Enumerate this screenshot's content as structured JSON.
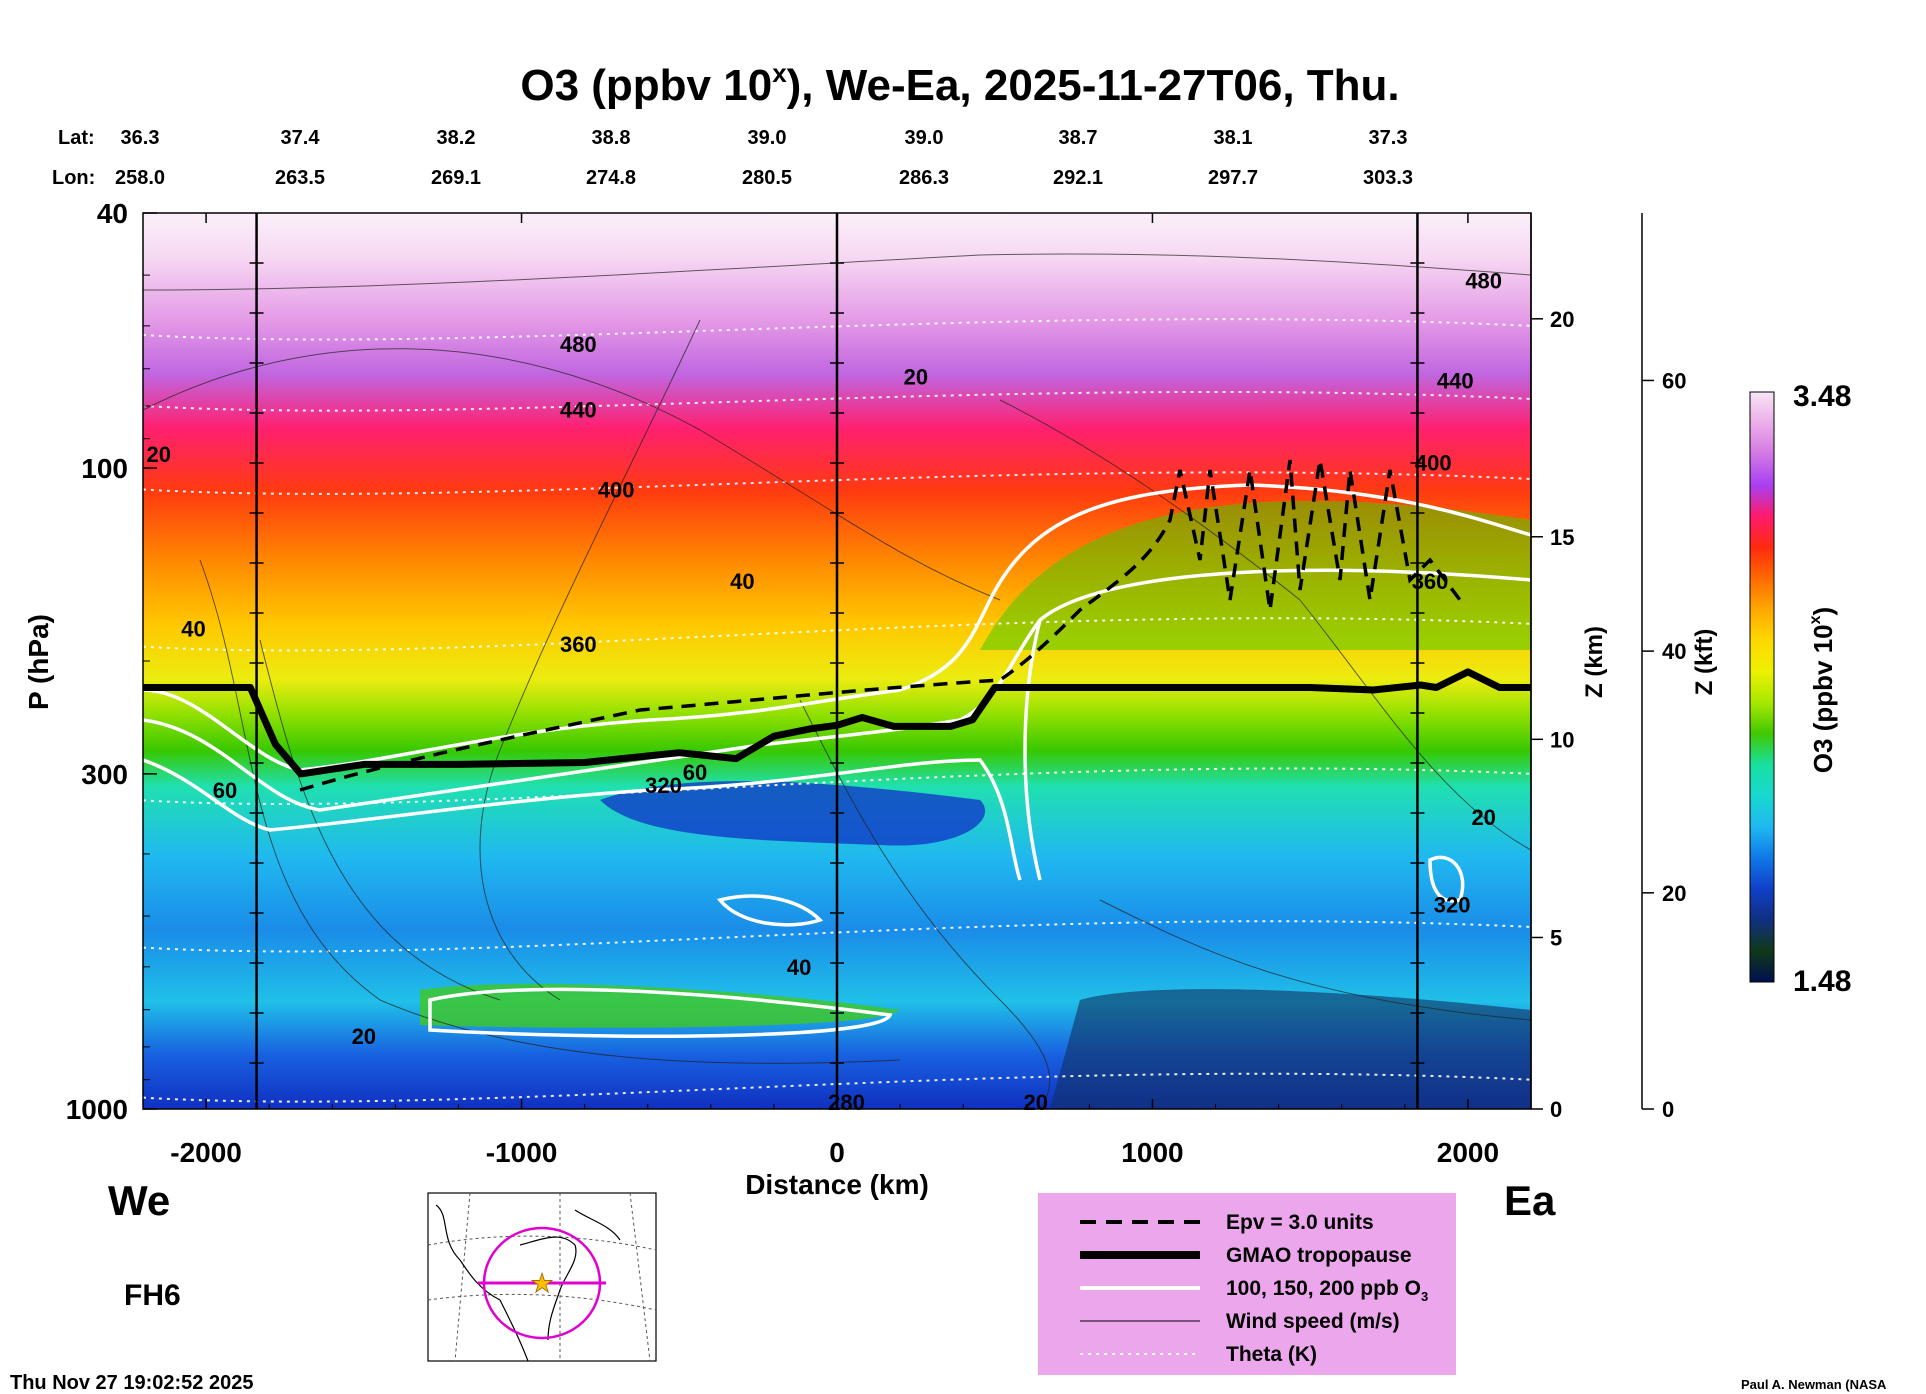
{
  "title": {
    "main": "O3 (ppbv 10",
    "sup": "x",
    "rest": "), We-Ea, 2025-11-27T06, Thu."
  },
  "header": {
    "lat_label": "Lat:",
    "lon_label": "Lon:",
    "lat": [
      "36.3",
      "37.4",
      "38.2",
      "38.8",
      "39.0",
      "39.0",
      "38.7",
      "38.1",
      "37.3"
    ],
    "lon": [
      "258.0",
      "263.5",
      "269.1",
      "274.8",
      "280.5",
      "286.3",
      "292.1",
      "297.7",
      "303.3"
    ]
  },
  "labels": {
    "west": "We",
    "east": "Ea",
    "forecast_hour": "FH6",
    "timestamp": "Thu Nov 27 19:02:52 2025",
    "credit": "Paul A. Newman (NASA"
  },
  "colorbar": {
    "max_label": "3.48",
    "min_label": "1.48",
    "title": "O3 (ppbv 10",
    "title_sup": "x",
    "title_end": ")",
    "stops": [
      "#f8e4f6",
      "#ecaee9",
      "#d278e4",
      "#a840f2",
      "#ff1a6c",
      "#ff2a10",
      "#ff6a00",
      "#ffa800",
      "#ffd800",
      "#eef000",
      "#a8e800",
      "#40c800",
      "#18e0a0",
      "#18d8d0",
      "#20b8f0",
      "#1078e8",
      "#1040c8",
      "#103080",
      "#103818",
      "#001050"
    ]
  },
  "legend": {
    "background": "#eca6ec",
    "items": [
      {
        "label": "Epv = 3.0 units",
        "style": "dashed"
      },
      {
        "label": "GMAO tropopause",
        "style": "thick"
      },
      {
        "label": "100, 150, 200 ppb O",
        "sub": "3",
        "style": "white"
      },
      {
        "label": "Wind speed (m/s)",
        "style": "thin"
      },
      {
        "label": "Theta (K)",
        "style": "dotted"
      }
    ]
  },
  "chart_data": {
    "type": "heatmap",
    "xlabel": "Distance (km)",
    "ylabel": "P (hPa)",
    "y2label": "Z (km)",
    "y3label": "Z (kft)",
    "xlim": [
      -2200,
      2200
    ],
    "ylim": [
      1000,
      40
    ],
    "ylog": true,
    "x_ticks": [
      -2000,
      -1000,
      0,
      1000,
      2000
    ],
    "x_tick_labels": [
      "-2000",
      "-1000",
      "0",
      "1000",
      "2000"
    ],
    "y_ticks": [
      40,
      100,
      300,
      1000
    ],
    "y_tick_labels": [
      "40",
      "100",
      "300",
      "1000"
    ],
    "z_km_ticks": [
      {
        "label": "0",
        "p": 1000
      },
      {
        "label": "5",
        "p": 540
      },
      {
        "label": "10",
        "p": 265
      },
      {
        "label": "15",
        "p": 128
      },
      {
        "label": "20",
        "p": 58.5
      }
    ],
    "z_kft_ticks": [
      {
        "label": "0",
        "p": 1000
      },
      {
        "label": "20",
        "p": 460
      },
      {
        "label": "40",
        "p": 193
      },
      {
        "label": "60",
        "p": 73
      }
    ],
    "vertical_lines_km": [
      -1840,
      0,
      1840
    ],
    "colorbar_range": [
      1.48,
      3.48
    ],
    "tropopause": {
      "x": [
        -2200,
        -1860,
        -1780,
        -1700,
        -1500,
        -1200,
        -800,
        -500,
        -320,
        -200,
        -80,
        0,
        80,
        180,
        360,
        430,
        500,
        1000,
        1500,
        1700,
        1850,
        1900,
        2000,
        2100,
        2200
      ],
      "p": [
        220,
        220,
        270,
        300,
        290,
        290,
        288,
        278,
        284,
        262,
        255,
        252,
        245,
        253,
        253,
        247,
        220,
        220,
        220,
        222,
        218,
        220,
        208,
        220,
        220
      ]
    },
    "theta_labels": [
      {
        "text": "480",
        "x": -820,
        "p": 64
      },
      {
        "text": "440",
        "x": -820,
        "p": 81
      },
      {
        "text": "400",
        "x": -700,
        "p": 108
      },
      {
        "text": "360",
        "x": -820,
        "p": 188
      },
      {
        "text": "320",
        "x": -550,
        "p": 312
      },
      {
        "text": "280",
        "x": 30,
        "p": 975
      },
      {
        "text": "480",
        "x": 2050,
        "p": 51
      },
      {
        "text": "440",
        "x": 1960,
        "p": 73
      },
      {
        "text": "400",
        "x": 1890,
        "p": 98
      },
      {
        "text": "360",
        "x": 1880,
        "p": 150
      },
      {
        "text": "320",
        "x": 1950,
        "p": 480
      }
    ],
    "wind_labels": [
      {
        "text": "20",
        "x": -2150,
        "p": 95
      },
      {
        "text": "40",
        "x": -2040,
        "p": 178
      },
      {
        "text": "60",
        "x": -1940,
        "p": 318
      },
      {
        "text": "40",
        "x": -300,
        "p": 150
      },
      {
        "text": "60",
        "x": -450,
        "p": 298
      },
      {
        "text": "40",
        "x": -120,
        "p": 600
      },
      {
        "text": "20",
        "x": -1500,
        "p": 770
      },
      {
        "text": "20",
        "x": 250,
        "p": 72
      },
      {
        "text": "20",
        "x": 630,
        "p": 975
      },
      {
        "text": "20",
        "x": 2050,
        "p": 350
      }
    ]
  }
}
